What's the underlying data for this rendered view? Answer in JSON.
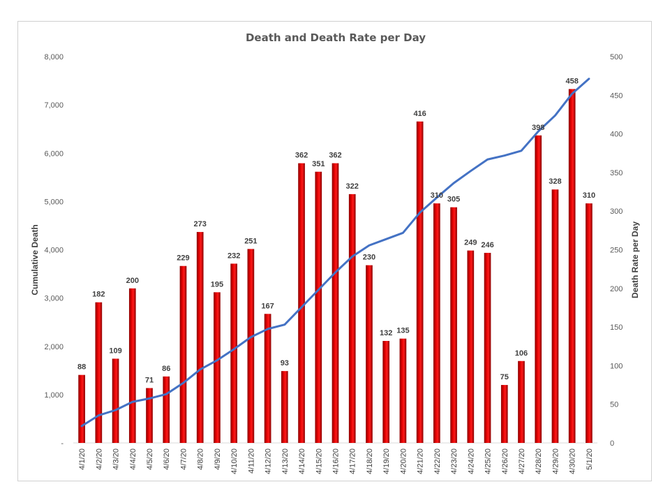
{
  "chart_data": {
    "type": "bar",
    "title": "Death and Death Rate per Day",
    "categories": [
      "4/1/20",
      "4/2/20",
      "4/3/20",
      "4/4/20",
      "4/5/20",
      "4/6/20",
      "4/7/20",
      "4/8/20",
      "4/9/20",
      "4/10/20",
      "4/11/20",
      "4/12/20",
      "4/13/20",
      "4/14/20",
      "4/15/20",
      "4/16/20",
      "4/17/20",
      "4/18/20",
      "4/19/20",
      "4/20/20",
      "4/21/20",
      "4/22/20",
      "4/23/20",
      "4/24/20",
      "4/25/20",
      "4/26/20",
      "4/27/20",
      "4/28/20",
      "4/29/20",
      "4/30/20",
      "5/1/20"
    ],
    "series": [
      {
        "name": "Death Rate per Day",
        "type": "bar",
        "axis": "right",
        "color": "#cc0000",
        "values": [
          88,
          182,
          109,
          200,
          71,
          86,
          229,
          273,
          195,
          232,
          251,
          167,
          93,
          362,
          351,
          362,
          322,
          230,
          132,
          135,
          416,
          310,
          305,
          249,
          246,
          75,
          106,
          398,
          328,
          458,
          310
        ]
      },
      {
        "name": "Cumulative Death",
        "type": "line",
        "axis": "left",
        "color": "#4472c4",
        "values": [
          350,
          570,
          680,
          850,
          920,
          1010,
          1240,
          1520,
          1710,
          1940,
          2190,
          2360,
          2450,
          2810,
          3170,
          3530,
          3860,
          4090,
          4220,
          4350,
          4770,
          5080,
          5380,
          5630,
          5870,
          5950,
          6050,
          6450,
          6780,
          7230,
          7540
        ]
      }
    ],
    "ylabel_left": "Cumulative Death",
    "ylabel_right": "Death Rate per Day",
    "ylim_left": [
      0,
      8000
    ],
    "ylim_right": [
      0,
      500
    ],
    "yticks_left": [
      "-",
      "1,000",
      "2,000",
      "3,000",
      "4,000",
      "5,000",
      "6,000",
      "7,000",
      "8,000"
    ],
    "yticks_right": [
      "0",
      "50",
      "100",
      "150",
      "200",
      "250",
      "300",
      "350",
      "400",
      "450",
      "500"
    ],
    "data_labels": true,
    "grid": false,
    "legend": "none"
  }
}
